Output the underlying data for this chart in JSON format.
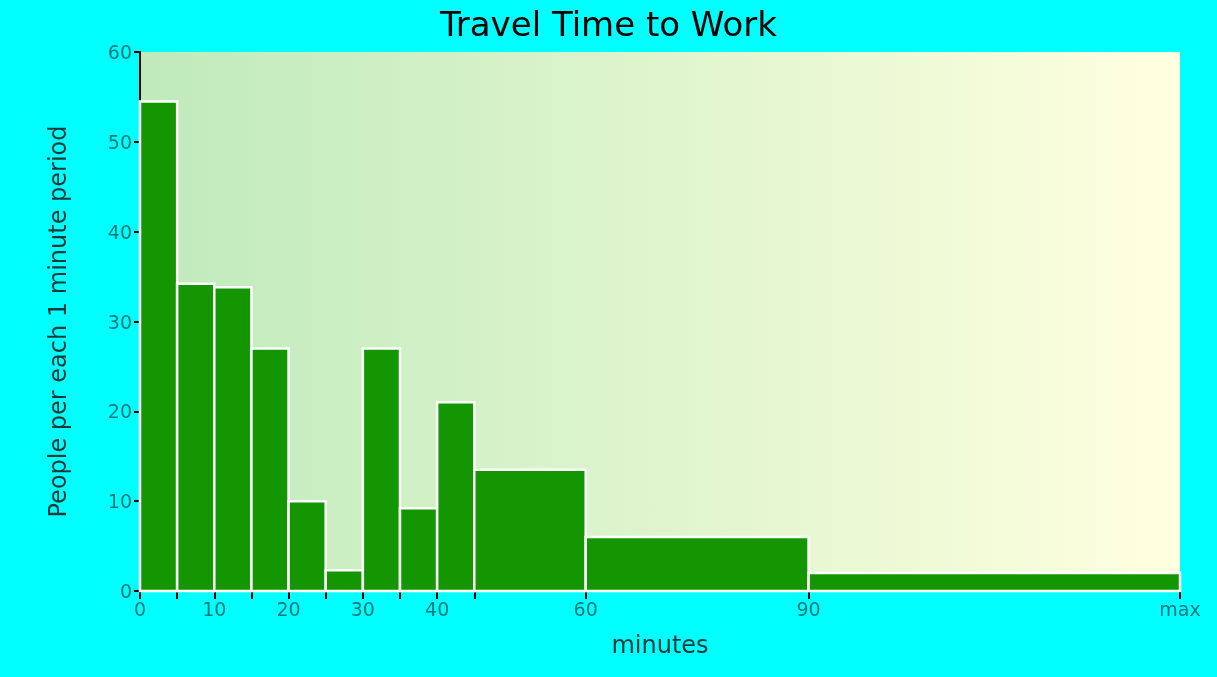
{
  "chart_data": {
    "type": "histogram",
    "title": "Travel Time to Work",
    "xlabel": "minutes",
    "ylabel": "People per each 1 minute period",
    "bins": [
      0,
      5,
      10,
      15,
      20,
      25,
      30,
      35,
      40,
      45,
      60,
      90,
      140
    ],
    "values": [
      54.5,
      34.2,
      33.8,
      27,
      10,
      2.3,
      27,
      9.2,
      21,
      13.5,
      6,
      2
    ],
    "color": "#149600",
    "xlim": [
      0,
      140
    ],
    "xticks": [
      0,
      {
        "value": 5,
        "label": null
      },
      10,
      {
        "value": 15,
        "label": null
      },
      20,
      {
        "value": 25,
        "label": null
      },
      30,
      {
        "value": 35,
        "label": null
      },
      40,
      {
        "value": 45,
        "label": null
      },
      60,
      90,
      {
        "value": 140,
        "label": "max"
      }
    ],
    "ylim": [
      0,
      60
    ],
    "yticks": [
      0,
      10,
      20,
      30,
      40,
      50,
      60
    ]
  }
}
